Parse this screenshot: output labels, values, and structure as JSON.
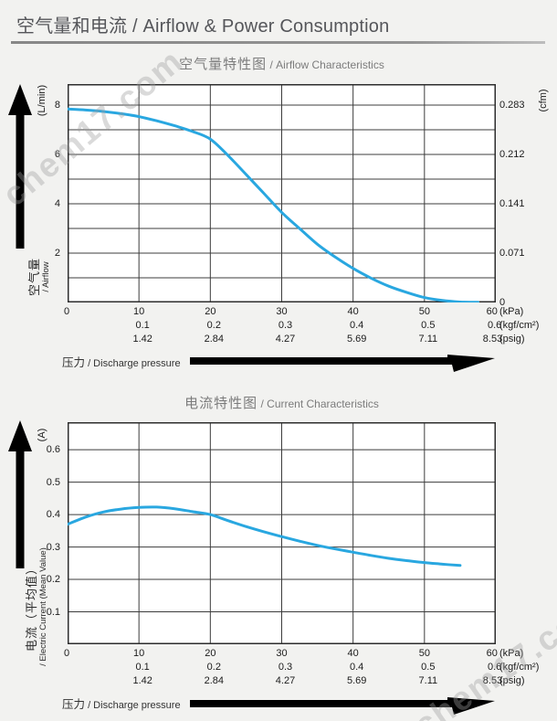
{
  "page": {
    "title_zh": "空气量和电流",
    "title_en": " / Airflow & Power Consumption",
    "watermark_text": "chem17.com"
  },
  "chart_data": [
    {
      "type": "line",
      "title_zh": "空气量特性图",
      "title_en": " / Airflow Characteristics",
      "line_color": "#29a7e0",
      "grid": true,
      "legend": "none",
      "x_axis": {
        "caption_zh": "压力",
        "caption_en": " / Discharge pressure",
        "min": 0,
        "max": 60,
        "grid_step": 10,
        "tick_rows": [
          {
            "unit": "(kPa)",
            "values": [
              "0",
              "10",
              "20",
              "30",
              "40",
              "50",
              "60"
            ]
          },
          {
            "unit": "(kgf/cm²)",
            "values": [
              "",
              "0.1",
              "0.2",
              "0.3",
              "0.4",
              "0.5",
              "0.6"
            ]
          },
          {
            "unit": "(psig)",
            "values": [
              "",
              "1.42",
              "2.84",
              "4.27",
              "5.69",
              "7.11",
              "8.53"
            ]
          }
        ]
      },
      "y_axis_left": {
        "name_zh": "空气量",
        "name_en": "/ Airflow",
        "unit": "(L/min)",
        "min": 0,
        "max": 8.85,
        "grid_step": 1,
        "ticks": [
          {
            "value": 8,
            "label": "8"
          },
          {
            "value": 6,
            "label": "6"
          },
          {
            "value": 4,
            "label": "4"
          },
          {
            "value": 2,
            "label": "2"
          }
        ]
      },
      "y_axis_right": {
        "unit": "(cfm)",
        "ticks": [
          {
            "value": 8,
            "label": "0.283"
          },
          {
            "value": 6,
            "label": "0.212"
          },
          {
            "value": 4,
            "label": "0.141"
          },
          {
            "value": 2,
            "label": "0.071"
          },
          {
            "value": 0,
            "label": "0"
          }
        ]
      },
      "series": [
        {
          "name": "airflow (L/min) vs pressure (kPa)",
          "x": [
            0,
            2.5,
            5,
            7.5,
            10,
            12.5,
            15,
            17.5,
            20,
            22.5,
            25,
            27.5,
            30,
            32.5,
            35,
            37.5,
            40,
            42.5,
            45,
            47.5,
            50,
            52.5,
            55,
            57.5
          ],
          "y": [
            7.84,
            7.8,
            7.74,
            7.65,
            7.53,
            7.36,
            7.16,
            6.93,
            6.62,
            5.95,
            5.19,
            4.42,
            3.65,
            3.0,
            2.36,
            1.84,
            1.38,
            0.99,
            0.66,
            0.41,
            0.2,
            0.08,
            0.02,
            0.01
          ]
        }
      ]
    },
    {
      "type": "line",
      "title_zh": "电流特性图",
      "title_en": " / Current Characteristics",
      "line_color": "#29a7e0",
      "grid": true,
      "legend": "none",
      "x_axis": {
        "caption_zh": "压力",
        "caption_en": " / Discharge pressure",
        "min": 0,
        "max": 60,
        "grid_step": 10,
        "tick_rows": [
          {
            "unit": "(kPa)",
            "values": [
              "0",
              "10",
              "20",
              "30",
              "40",
              "50",
              "60"
            ]
          },
          {
            "unit": "(kgf/cm²)",
            "values": [
              "",
              "0.1",
              "0.2",
              "0.3",
              "0.4",
              "0.5",
              "0.6"
            ]
          },
          {
            "unit": "(psig)",
            "values": [
              "",
              "1.42",
              "2.84",
              "4.27",
              "5.69",
              "7.11",
              "8.53"
            ]
          }
        ]
      },
      "y_axis_left": {
        "name_zh": "电流（平均值）",
        "name_en": "/ Electric Current (Mean Value)",
        "unit": "(A)",
        "min": 0,
        "max": 0.685,
        "grid_step": 0.1,
        "ticks": [
          {
            "value": 0.6,
            "label": "0.6"
          },
          {
            "value": 0.5,
            "label": "0.5"
          },
          {
            "value": 0.4,
            "label": "0.4"
          },
          {
            "value": 0.3,
            "label": "0.3"
          },
          {
            "value": 0.2,
            "label": "0.2"
          },
          {
            "value": 0.1,
            "label": "0.1"
          }
        ]
      },
      "series": [
        {
          "name": "current (A) vs pressure (kPa)",
          "x": [
            0,
            2.5,
            5,
            7.5,
            10,
            12.5,
            15,
            17.5,
            20,
            22.5,
            25,
            27.5,
            30,
            32.5,
            35,
            37.5,
            40,
            42.5,
            45,
            47.5,
            50,
            52.5,
            55
          ],
          "y": [
            0.37,
            0.392,
            0.408,
            0.417,
            0.422,
            0.423,
            0.418,
            0.409,
            0.4,
            0.381,
            0.363,
            0.347,
            0.332,
            0.318,
            0.305,
            0.294,
            0.284,
            0.274,
            0.265,
            0.258,
            0.252,
            0.247,
            0.243
          ]
        }
      ]
    }
  ]
}
